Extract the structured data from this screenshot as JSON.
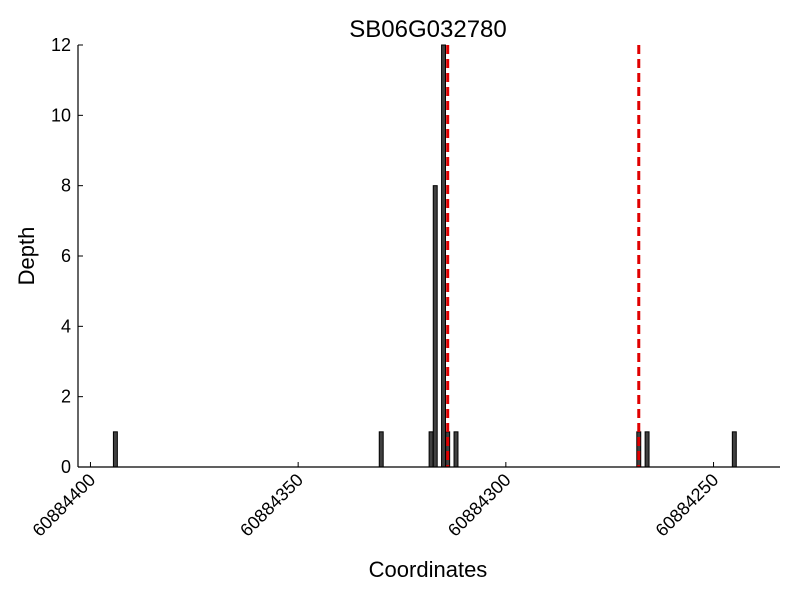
{
  "chart_data": {
    "type": "bar",
    "title": "SB06G032780",
    "xlabel": "Coordinates",
    "ylabel": "Depth",
    "xlim": [
      60884403,
      60884234
    ],
    "x_reversed": true,
    "ylim": [
      0,
      12
    ],
    "xticks": [
      60884400,
      60884350,
      60884300,
      60884250
    ],
    "yticks": [
      0,
      2,
      4,
      6,
      8,
      10,
      12
    ],
    "grid": false,
    "bar_color": "#404040",
    "bars": [
      {
        "x": 60884394,
        "depth": 1
      },
      {
        "x": 60884330,
        "depth": 1
      },
      {
        "x": 60884318,
        "depth": 1
      },
      {
        "x": 60884317,
        "depth": 8
      },
      {
        "x": 60884315,
        "depth": 12
      },
      {
        "x": 60884314,
        "depth": 1
      },
      {
        "x": 60884312,
        "depth": 1
      },
      {
        "x": 60884268,
        "depth": 1
      },
      {
        "x": 60884266,
        "depth": 1
      },
      {
        "x": 60884245,
        "depth": 1
      }
    ],
    "vlines": {
      "color": "#e00000",
      "style": "dashed",
      "x": [
        60884314,
        60884268
      ]
    }
  }
}
